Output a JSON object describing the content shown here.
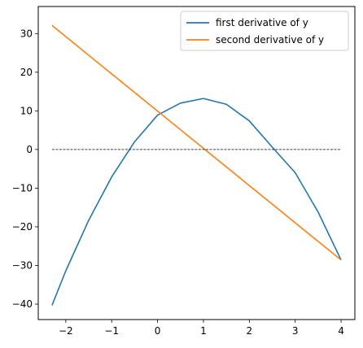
{
  "chart_data": {
    "type": "line",
    "title": "",
    "xlabel": "",
    "ylabel": "",
    "xlim": [
      -2.6,
      4.3
    ],
    "ylim": [
      -44,
      37
    ],
    "xticks": [
      -2,
      -1,
      0,
      1,
      2,
      3,
      4
    ],
    "yticks": [
      -40,
      -30,
      -20,
      -10,
      0,
      10,
      20,
      30
    ],
    "xtick_labels": [
      "−2",
      "−1",
      "0",
      "1",
      "2",
      "3",
      "4"
    ],
    "ytick_labels": [
      "−40",
      "−30",
      "−20",
      "−10",
      "0",
      "10",
      "20",
      "30"
    ],
    "grid": false,
    "legend_position": "top-right",
    "series": [
      {
        "name": "first derivative of y",
        "color": "#1f77b4",
        "x": [
          -2.3,
          -2.0,
          -1.5,
          -1.0,
          -0.5,
          0.0,
          0.5,
          1.0,
          1.5,
          2.0,
          2.5,
          3.0,
          3.5,
          4.0
        ],
        "y": [
          -40.3,
          -31.4,
          -18.3,
          -7.1,
          2.0,
          8.9,
          12.0,
          13.2,
          11.7,
          7.4,
          0.6,
          -6.0,
          -16.2,
          -28.6
        ]
      },
      {
        "name": "second derivative of y",
        "color": "#ff7f0e",
        "x": [
          -2.3,
          4.0
        ],
        "y": [
          32.1,
          -28.6
        ]
      },
      {
        "name": "",
        "color": "#000000",
        "style": "dashed",
        "x": [
          -2.3,
          4.0
        ],
        "y": [
          0,
          0
        ]
      }
    ]
  }
}
